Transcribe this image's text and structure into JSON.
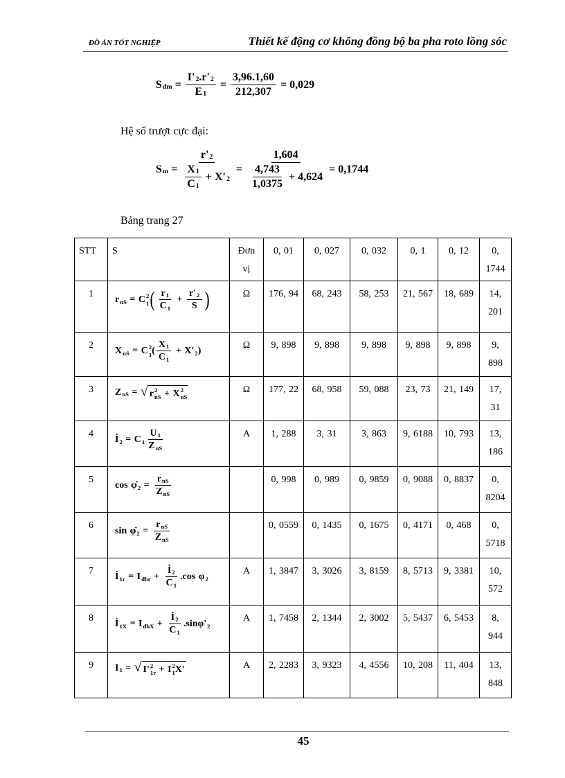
{
  "header": {
    "left": "ĐỒ ÁN TỐT NGHIỆP",
    "right": "Thiết kế động cơ không đồng bộ ba pha roto lồng sóc"
  },
  "equations": {
    "s_dm": [
      {
        "b": "S",
        "sub": "đm"
      },
      " = ",
      {
        "frac": [
          [
            {
              "b": "I'",
              "sub": "2"
            },
            ".",
            {
              "b": "r'",
              "sub": "2"
            }
          ],
          [
            {
              "b": "E",
              "sub": "1"
            }
          ]
        ]
      },
      " = ",
      {
        "frac": [
          [
            "3,96.1,60"
          ],
          [
            "212,307"
          ]
        ]
      },
      " = 0,029"
    ],
    "max_slip_label": "Hệ số trượt cực đại:",
    "s_m": [
      {
        "b": "S",
        "sub": "m"
      },
      " = ",
      {
        "frac": [
          [
            {
              "b": "r'",
              "sub": "2"
            }
          ],
          [
            {
              "frac": [
                [
                  {
                    "b": "X",
                    "sub": "1"
                  }
                ],
                [
                  {
                    "b": "C",
                    "sub": "1"
                  }
                ]
              ]
            },
            " + ",
            {
              "b": "X'",
              "sub": "2"
            }
          ]
        ]
      },
      " = ",
      {
        "frac": [
          [
            "1,604"
          ],
          [
            {
              "frac": [
                [
                  "4,743"
                ],
                [
                  "1,0375"
                ]
              ]
            },
            " + 4,624"
          ]
        ]
      },
      " = 0,1744"
    ]
  },
  "table_caption": "Bảng trang 27",
  "table": {
    "headers": [
      "STT",
      "S",
      "Đơn vị",
      "0, 01",
      "0, 027",
      "0, 032",
      "0, 1",
      "0, 12",
      "0, 1744"
    ],
    "rows": [
      {
        "stt": "1",
        "unit": "Ω",
        "values": [
          "176, 94",
          "68, 243",
          "58, 253",
          "21, 567",
          "18, 689",
          "14, 201"
        ],
        "formula": [
          {
            "b": "r",
            "sub": "nS"
          },
          " = ",
          {
            "b": "C",
            "sup": "2",
            "sub": "1"
          },
          {
            "paren": [
              {
                "frac": [
                  [
                    {
                      "b": "r",
                      "sub": "1"
                    }
                  ],
                  [
                    {
                      "b": "C",
                      "sub": "1"
                    }
                  ]
                ]
              },
              " + ",
              {
                "frac": [
                  [
                    {
                      "b": "r'",
                      "sub": "2"
                    }
                  ],
                  [
                    "S"
                  ]
                ]
              }
            ]
          }
        ]
      },
      {
        "stt": "2",
        "unit": "Ω",
        "values": [
          "9, 898",
          "9, 898",
          "9, 898",
          "9, 898",
          "9, 898",
          "9, 898"
        ],
        "formula": [
          {
            "b": "X",
            "sub": "nS"
          },
          " = ",
          {
            "b": "C",
            "sup": "2",
            "sub": "1"
          },
          "(",
          {
            "frac": [
              [
                {
                  "b": "X",
                  "sub": "1"
                }
              ],
              [
                {
                  "b": "C",
                  "sub": "1"
                }
              ]
            ]
          },
          " + ",
          {
            "b": "X'",
            "sub": "2"
          },
          ")"
        ]
      },
      {
        "stt": "3",
        "unit": "Ω",
        "values": [
          "177, 22",
          "68, 958",
          "59, 088",
          "23, 73",
          "21, 149",
          "17, 31"
        ],
        "formula": [
          {
            "b": "Z",
            "sub": "nS"
          },
          " = ",
          {
            "sqrt": [
              {
                "b": "r",
                "sup": "2",
                "sub": "nS"
              },
              " + ",
              {
                "b": "X",
                "sup": "2",
                "sub": "nS"
              }
            ]
          }
        ]
      },
      {
        "stt": "4",
        "unit": "A",
        "values": [
          "1, 288",
          "3, 31",
          "3, 863",
          "9, 6188",
          "10, 793",
          "13, 186"
        ],
        "formula": [
          {
            "b": "İ",
            "sub": "2"
          },
          " = ",
          {
            "b": "C",
            "sub": "1"
          },
          {
            "frac": [
              [
                {
                  "b": "U",
                  "sub": "1"
                }
              ],
              [
                {
                  "b": "Z",
                  "sub": "nS"
                }
              ]
            ]
          }
        ]
      },
      {
        "stt": "5",
        "unit": "",
        "values": [
          "0, 998",
          "0, 989",
          "0, 9859",
          "0, 9088",
          "0, 8837",
          "0, 8204"
        ],
        "formula": [
          "cos ",
          {
            "b": "φ̇",
            "sub": "2"
          },
          " = ",
          {
            "frac": [
              [
                {
                  "b": "r",
                  "sub": "nS"
                }
              ],
              [
                {
                  "b": "Z",
                  "sub": "nS"
                }
              ]
            ]
          }
        ]
      },
      {
        "stt": "6",
        "unit": "",
        "values": [
          "0, 0559",
          "0, 1435",
          "0, 1675",
          "0, 4171",
          "0, 468",
          "0, 5718"
        ],
        "formula": [
          "sin ",
          {
            "b": "φ̇",
            "sub": "2"
          },
          " = ",
          {
            "frac": [
              [
                {
                  "b": "r",
                  "sub": "nS"
                }
              ],
              [
                {
                  "b": "Z",
                  "sub": "nS"
                }
              ]
            ]
          }
        ]
      },
      {
        "stt": "7",
        "unit": "A",
        "values": [
          "1, 3847",
          "3, 3026",
          "3, 8159",
          "8, 5713",
          "9, 3381",
          "10, 572"
        ],
        "formula": [
          {
            "b": "İ",
            "sub": "1r"
          },
          " = ",
          {
            "b": "I",
            "sub": "đbr"
          },
          " + ",
          {
            "frac": [
              [
                {
                  "b": "İ",
                  "sub": "2"
                }
              ],
              [
                {
                  "b": "C",
                  "sub": "1"
                }
              ]
            ]
          },
          ".cos ",
          {
            "b": "φ",
            "sub": "2"
          }
        ]
      },
      {
        "stt": "8",
        "unit": "A",
        "values": [
          "1, 7458",
          "2, 1344",
          "2, 3002",
          "5, 5437",
          "6, 5453",
          "8, 944"
        ],
        "formula": [
          {
            "b": "İ",
            "sub": "1X"
          },
          " = ",
          {
            "b": "I",
            "sub": "đbX"
          },
          " + ",
          {
            "frac": [
              [
                {
                  "b": "İ",
                  "sub": "2"
                }
              ],
              [
                {
                  "b": "C",
                  "sub": "1"
                }
              ]
            ]
          },
          ".sin",
          {
            "b": "φ'",
            "sub": "2"
          }
        ]
      },
      {
        "stt": "9",
        "unit": "A",
        "values": [
          "2, 2283",
          "3, 9323",
          "4, 4556",
          "10, 208",
          "11, 404",
          "13, 848"
        ],
        "formula": [
          {
            "b": "I",
            "sub": "1"
          },
          " = ",
          {
            "sqrt": [
              {
                "b": "I'",
                "sup": "2",
                "sub": "1r"
              },
              " + ",
              {
                "b": "I",
                "sup": "2",
                "sub": "1"
              },
              "X'"
            ]
          }
        ]
      }
    ]
  },
  "footer": {
    "page_number": "45"
  }
}
